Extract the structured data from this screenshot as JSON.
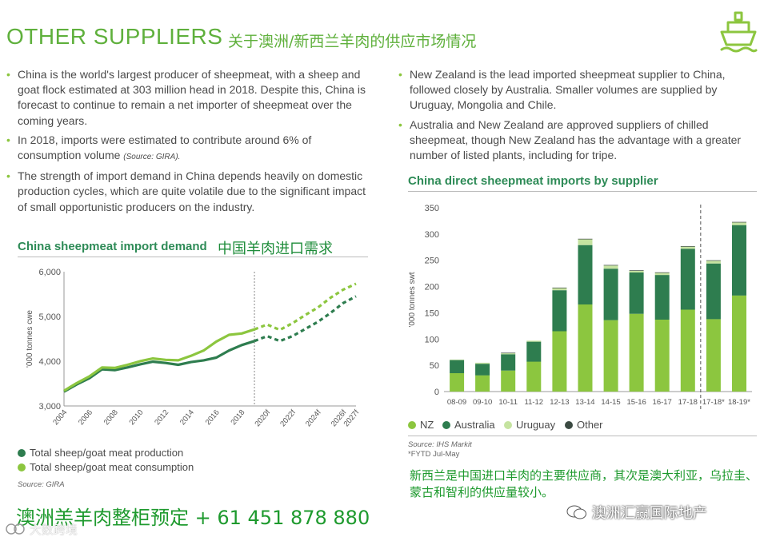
{
  "header": {
    "title": "OTHER SUPPLIERS",
    "title_cn": "关于澳洲/新西兰羊肉的供应市场情况",
    "icon": "ship-icon"
  },
  "left_bullets": [
    {
      "text": "China is the world's largest producer of sheepmeat, with a sheep and goat flock estimated at 303 million head in 2018. Despite this, China is forecast to continue to remain a net importer of sheepmeat over the coming years.",
      "source": ""
    },
    {
      "text": "In 2018, imports were estimated to contribute around 6% of consumption volume",
      "source": "(Source: GIRA)."
    },
    {
      "text": "The strength of import demand in China depends heavily on domestic production cycles, which are quite volatile due to the significant impact of small opportunistic producers on the industry.",
      "source": ""
    }
  ],
  "right_bullets": [
    {
      "text": "New Zealand is the lead imported sheepmeat supplier to China, followed closely by Australia. Smaller volumes are supplied by Uruguay, Mongolia and Chile."
    },
    {
      "text": "Australia and New Zealand are approved suppliers of chilled sheepmeat, though New Zealand has the advantage with a greater number of listed plants, including for tripe."
    }
  ],
  "line_chart_labels": {
    "title": "China sheepmeat import demand",
    "title_cn": "中国羊肉进口需求",
    "source": "Source: GIRA"
  },
  "bar_chart_labels": {
    "title": "China direct sheepmeat imports by supplier",
    "source": "Source: IHS Markit",
    "footnote": "*FYTD Jul-May"
  },
  "chart_data": [
    {
      "type": "line",
      "title": "China sheepmeat import demand",
      "ylabel": "'000 tonnes cwe",
      "ylim": [
        3000,
        6000
      ],
      "yticks": [
        "3,000",
        "4,000",
        "5,000",
        "6,000"
      ],
      "x_labels": [
        "2004",
        "2006",
        "2008",
        "2010",
        "2012",
        "2014",
        "2016",
        "2018",
        "2020f",
        "2022f",
        "2024f",
        "2026f",
        "2027f"
      ],
      "x": [
        2004,
        2005,
        2006,
        2007,
        2008,
        2009,
        2010,
        2011,
        2012,
        2013,
        2014,
        2015,
        2016,
        2017,
        2018,
        2019,
        2020,
        2021,
        2022,
        2023,
        2024,
        2025,
        2026,
        2027
      ],
      "forecast_from": 2019,
      "grid": false,
      "legend_position": "bottom-left",
      "series": [
        {
          "name": "Total sheep/goat meat production",
          "color": "#2e7d4f",
          "values": [
            3320,
            3480,
            3620,
            3820,
            3800,
            3860,
            3930,
            3990,
            3960,
            3920,
            3980,
            4020,
            4080,
            4240,
            4360,
            4450,
            4560,
            4450,
            4560,
            4720,
            4880,
            5080,
            5300,
            5450
          ]
        },
        {
          "name": "Total sheep/goat meat consumption",
          "color": "#8cc63f",
          "values": [
            3340,
            3510,
            3660,
            3860,
            3850,
            3920,
            4000,
            4060,
            4030,
            4020,
            4120,
            4240,
            4440,
            4590,
            4620,
            4710,
            4820,
            4700,
            4850,
            5030,
            5200,
            5420,
            5600,
            5730
          ]
        }
      ]
    },
    {
      "type": "bar",
      "title": "China direct sheepmeat imports by supplier",
      "ylabel": "'000 tonnes swt",
      "ylim": [
        0,
        350
      ],
      "yticks": [
        0,
        50,
        100,
        150,
        200,
        250,
        300,
        350
      ],
      "categories": [
        "08-09",
        "09-10",
        "10-11",
        "11-12",
        "12-13",
        "13-14",
        "14-15",
        "15-16",
        "16-17",
        "17-18",
        "17-18*",
        "18-19*"
      ],
      "stacked": true,
      "legend_position": "bottom",
      "series": [
        {
          "name": "NZ",
          "color": "#8cc63f",
          "values": [
            35,
            31,
            40,
            57,
            115,
            166,
            136,
            148,
            137,
            156,
            138,
            183
          ]
        },
        {
          "name": "Australia",
          "color": "#2e7d4f",
          "values": [
            25,
            22,
            31,
            38,
            78,
            113,
            98,
            79,
            85,
            116,
            106,
            134
          ]
        },
        {
          "name": "Uruguay",
          "color": "#c5e3a0",
          "values": [
            1,
            2,
            2,
            2,
            4,
            11,
            6,
            3,
            4,
            4,
            5,
            5
          ]
        },
        {
          "name": "Other",
          "color": "#3b4a42",
          "values": [
            0,
            0,
            1,
            0,
            1,
            1,
            1,
            1,
            1,
            1,
            1,
            1
          ]
        }
      ]
    }
  ],
  "cn_note": "新西兰是中国进口羊肉的主要供应商，其次是澳大利亚，乌拉圭、蒙古和智利的供应量较小。",
  "promo": "澳洲羔羊肉整柜预定 + 61 451 878 880",
  "watermarks": {
    "bottom_right": "澳洲汇赢国际地产",
    "bottom_left": "大数跨境"
  }
}
